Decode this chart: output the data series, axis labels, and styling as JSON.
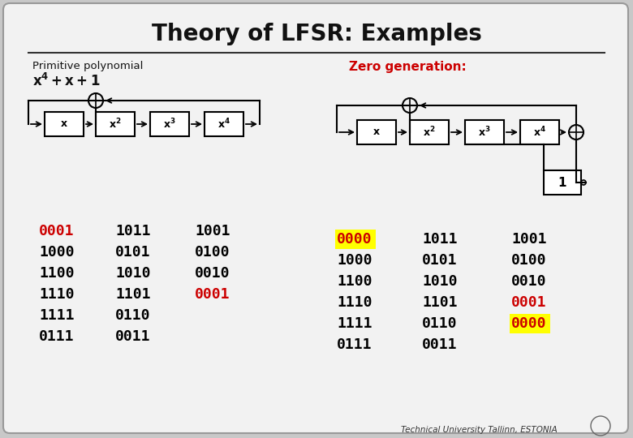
{
  "title": "Theory of LFSR: Examples",
  "primitive_label": "Primitive polynomial",
  "zero_gen_label": "Zero generation:",
  "left_col1": [
    "0001",
    "1000",
    "1100",
    "1110",
    "1111",
    "0111"
  ],
  "left_col2": [
    "1011",
    "0101",
    "1010",
    "1101",
    "0110",
    "0011"
  ],
  "left_col3": [
    "1001",
    "0100",
    "0010",
    "0001",
    "",
    ""
  ],
  "left_col1_red": [
    0
  ],
  "left_col3_red": [
    3
  ],
  "right_col1": [
    "0000",
    "1000",
    "1100",
    "1110",
    "1111",
    "0111"
  ],
  "right_col2": [
    "1011",
    "0101",
    "1010",
    "1101",
    "0110",
    "0011"
  ],
  "right_col3": [
    "1001",
    "0100",
    "0010",
    "0001",
    "0000",
    ""
  ],
  "right_col1_yellow": [
    0
  ],
  "right_col3_red": [
    3
  ],
  "right_col3_yellow": [
    4
  ],
  "footer": "Technical University Tallinn, ESTONIA",
  "red_color": "#cc0000",
  "black_color": "#000000",
  "yellow_color": "#ffff00",
  "slide_bg": "#f2f2f2",
  "outer_bg": "#c8c8c8"
}
